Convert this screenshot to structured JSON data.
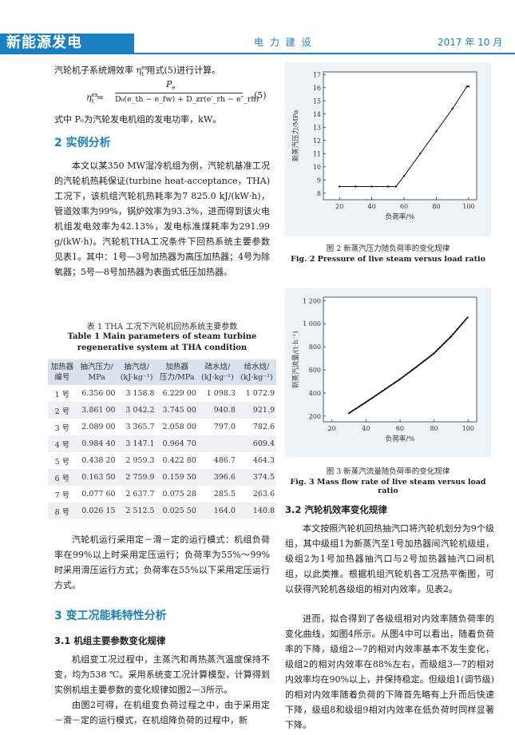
{
  "header": {
    "journal": "新能源发电",
    "journal_name": "电 力 建 设",
    "issue": "2017 年 10 月"
  },
  "left": {
    "p_intro": "汽轮机子系统㶲效率 η",
    "p_intro_sup": "ex",
    "p_intro_sub": "t",
    "p_intro_tail": " 用式(5)进行计算。",
    "formula_lhs": "η",
    "formula_lhs_sup": "ex",
    "formula_lhs_sub": "t",
    "formula_num": "P",
    "formula_num_sub": "e",
    "formula_den": "D₀(e_th − e_fw) + D_zr(e′_rh − e″_rh)",
    "formula_no": "(5)",
    "p_formula_note": "式中 Pₑ为汽轮发电机组的发电功率，kW。",
    "sec2": "2  实例分析",
    "p_case": "本文以某350 MW湿冷机组为例，汽轮机基准工况的汽轮机热耗保证(turbine heat-acceptance，THA)工况下，该机组汽轮机热耗率为7 825.0 kJ/(kW·h)，管道效率为99%，锅炉效率为93.3%，进而得到该火电机组发电效率为42.13%，发电标准煤耗率为291.99 g/(kW·h)。汽轮机THA工况条件下回热系统主要参数见表1。其中：1号—3号加热器为高压加热器；4号为除氧器；5号—8号加热器为表面式低压加热器。",
    "table": {
      "title_cn": "表 1   THA 工况下汽轮机回热系统主要参数",
      "title_en_1": "Table 1   Main parameters of steam turbine",
      "title_en_2": "regenerative system at THA condition",
      "headers": [
        [
          "加热器",
          "编号"
        ],
        [
          "抽汽压力/",
          "MPa"
        ],
        [
          "抽汽焓/",
          "(kJ·kg⁻¹)"
        ],
        [
          "加热器",
          "压力/MPa"
        ],
        [
          "疏水焓/",
          "(kJ·kg⁻¹)"
        ],
        [
          "给水焓/",
          "(kJ·kg⁻¹)"
        ]
      ],
      "rows": [
        [
          "1 号",
          "6.356 00",
          "3 158.8",
          "6.229 00",
          "1 098.3",
          "1 072.9"
        ],
        [
          "2 号",
          "3.861 00",
          "3 042.2",
          "3.745 00",
          "940.8",
          "921.9"
        ],
        [
          "3 号",
          "2.089 00",
          "3 365.7",
          "2.058 00",
          "797.0",
          "782.6"
        ],
        [
          "4 号",
          "0.984 40",
          "3 147.1",
          "0.964 70",
          "",
          "609.4"
        ],
        [
          "5 号",
          "0.438 20",
          "2 959.3",
          "0.422 80",
          "486.7",
          "464.3"
        ],
        [
          "6 号",
          "0.163 50",
          "2 759.9",
          "0.159 50",
          "396.6",
          "374.5"
        ],
        [
          "7 号",
          "0.077 60",
          "2 637.7",
          "0.075 28",
          "285.5",
          "263.6"
        ],
        [
          "8 号",
          "0.026 15",
          "2 512.5",
          "0.025 50",
          "164.0",
          "140.8"
        ]
      ]
    },
    "p_mode": "汽轮机运行采用定－滑－定的运行模式：机组负荷率在99%以上时采用定压运行；负荷率为55%～99%时采用滑压运行方式；负荷率在55%以下采用定压运行方式。",
    "sec3": "3  变工况能耗特性分析",
    "sec31": "3.1  机组主要参数变化规律",
    "p_31": "机组变工况过程中，主蒸汽和再热蒸汽温度保持不变，均为538 ℃。采用系统变工况计算模型，计算得到实例机组主要参数的变化规律如图2—3所示。",
    "p_31b": "由图2可得，在机组变负荷过程之中，由于采用定－滑－定的运行模式，在机组降负荷的过程中，新"
  },
  "right": {
    "fig2_cap_cn": "图 2   新蒸汽压力随负荷率的变化规律",
    "fig2_cap_en": "Fig. 2   Pressure of live steam versus load ratio",
    "fig3_cap_cn": "图 3   新蒸汽流量随负荷率的变化规律",
    "fig3_cap_en": "Fig. 3   Mass flow rate of live steam versus load ratio",
    "sec32": "3.2  汽轮机效率变化规律",
    "p_32": "本文按照汽轮机回热抽汽口将汽轮机划分为9个级组，其中级组1为新蒸汽至1号加热器间汽轮机级组，级组2为1号加热器抽汽口与2号加热器抽汽口间机组，以此类推。根据机组汽轮机各工况热平衡图，可以获得汽轮机各级组的相对内效率，见表2。",
    "p_32b": "进而，拟合得到了各级组相对内效率随负荷率的变化曲线，如图4所示。从图4中可以看出，随着负荷率的下降，级组2—7的相对内效率基本不发生变化，级组2的相对内效率在88%左右，而级组3—7的相对内效率均在90%以上，并保持稳定。但级组1(调节级)的相对内效率随着负荷的下降首先略有上升而后快速下降，级组8和级组9相对内效率在低负荷时同样显著下降。"
  },
  "chart_data": [
    {
      "type": "line",
      "xlabel": "负荷率/%",
      "ylabel": "新蒸汽压力/MPa",
      "xlim": [
        10,
        105
      ],
      "ylim": [
        7.5,
        17.2
      ],
      "xticks": [
        20,
        40,
        60,
        80,
        100
      ],
      "yticks": [
        8,
        9,
        10,
        11,
        12,
        13,
        14,
        15,
        16,
        17
      ],
      "x": [
        20,
        30,
        40,
        50,
        55,
        60,
        70,
        80,
        90,
        99,
        100
      ],
      "y": [
        8.5,
        8.5,
        8.5,
        8.5,
        8.5,
        9.3,
        11.0,
        12.7,
        14.4,
        16.1,
        16.1
      ]
    },
    {
      "type": "line",
      "xlabel": "负荷率/%",
      "ylabel": "新蒸汽流量/(t·h⁻¹)",
      "xlim": [
        15,
        105
      ],
      "ylim": [
        150,
        1230
      ],
      "xticks": [
        20,
        40,
        60,
        80,
        100
      ],
      "yticks": [
        200,
        400,
        600,
        800,
        1000,
        1200
      ],
      "x": [
        30,
        40,
        50,
        60,
        70,
        80,
        90,
        100
      ],
      "y": [
        225,
        320,
        420,
        520,
        630,
        745,
        890,
        1060
      ]
    }
  ]
}
